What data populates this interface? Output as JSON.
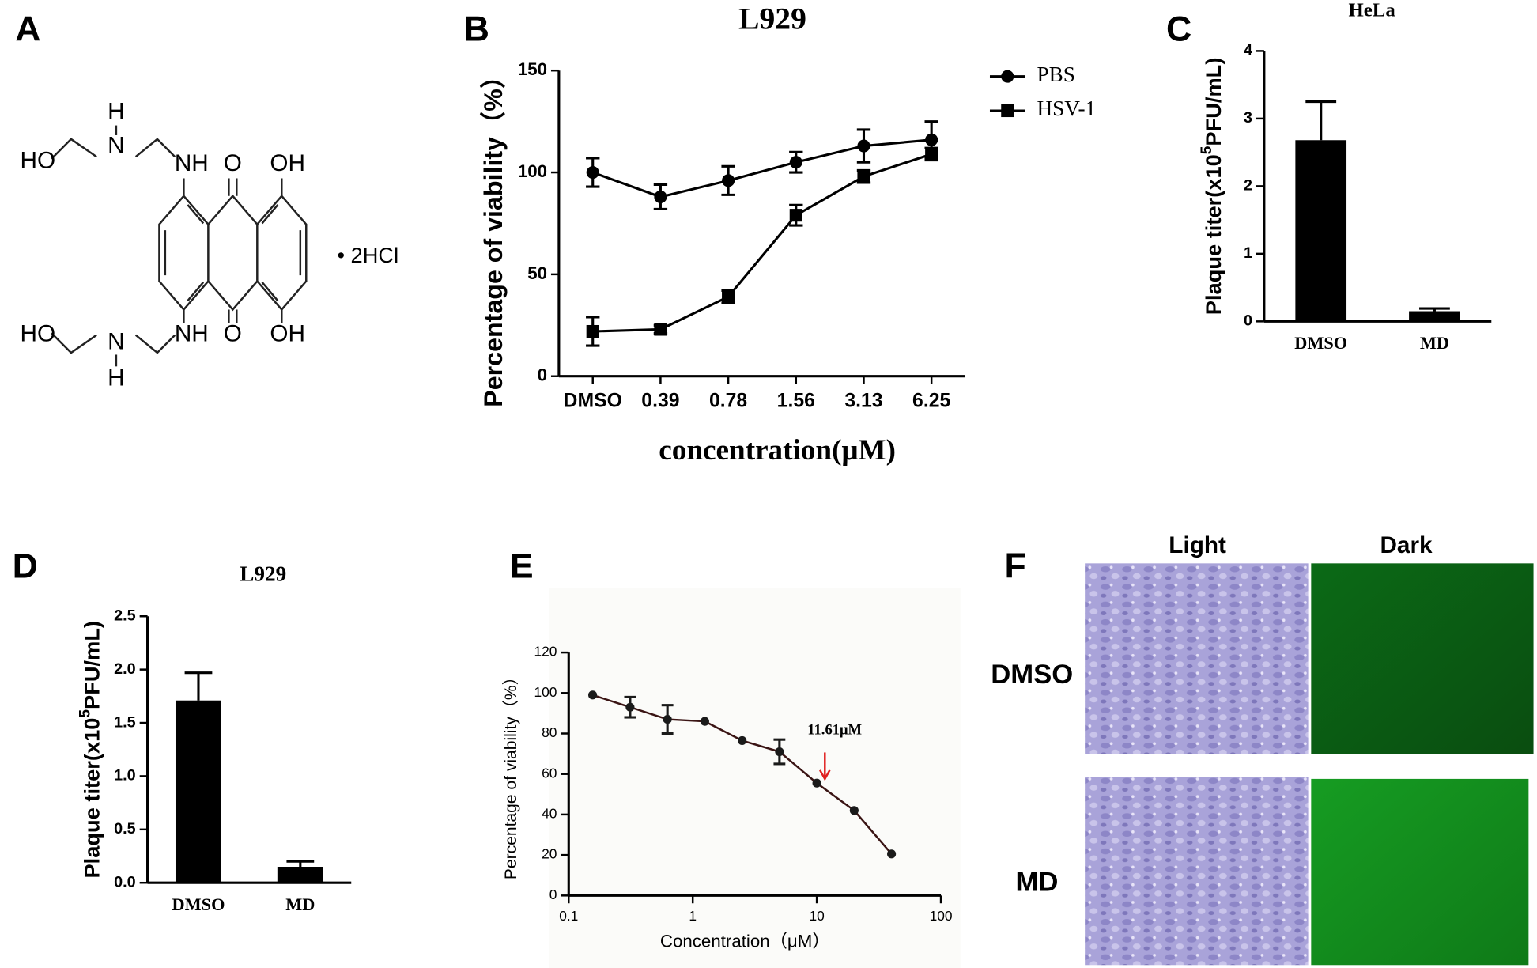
{
  "panel_labels": [
    "A",
    "B",
    "C",
    "D",
    "E",
    "F"
  ],
  "structure": {
    "labels": [
      "HO",
      "H",
      "N",
      "NH",
      "O",
      "OH",
      "HO",
      "N",
      "H",
      "NH",
      "O",
      "OH",
      "• 2HCl"
    ]
  },
  "chart_data": [
    {
      "type": "line",
      "title": "L929",
      "xlabel": "concentration(μM)",
      "ylabel": "Percentage of viability（%）",
      "categories": [
        "DMSO",
        "0.39",
        "0.78",
        "1.56",
        "3.13",
        "6.25"
      ],
      "series": [
        {
          "name": "PBS",
          "marker": "circle",
          "color": "#000000",
          "values": [
            100,
            88,
            96,
            105,
            113,
            116
          ],
          "errors": [
            7,
            6,
            7,
            5,
            8,
            9
          ]
        },
        {
          "name": "HSV-1",
          "marker": "square",
          "color": "#000000",
          "values": [
            22,
            23,
            39,
            79,
            98,
            109
          ],
          "errors": [
            7,
            2,
            3,
            5,
            3,
            3
          ]
        }
      ],
      "ylim": [
        0,
        150
      ],
      "yticks": [
        0,
        50,
        100,
        150
      ],
      "legend": "top-right"
    },
    {
      "type": "bar",
      "title": "HeLa",
      "ylabel_parts": [
        "Plaque titer(x10",
        "5",
        "PFU/mL)"
      ],
      "categories": [
        "DMSO",
        "MD"
      ],
      "values": [
        2.68,
        0.15
      ],
      "errors": [
        0.57,
        0.04
      ],
      "color": "#000000",
      "ylim": [
        0,
        4
      ],
      "yticks": [
        0,
        1,
        2,
        3,
        4
      ]
    },
    {
      "type": "bar",
      "title": "L929",
      "ylabel_parts": [
        "Plaque titer(x10",
        "5",
        "PFU/mL)"
      ],
      "categories": [
        "DMSO",
        "MD"
      ],
      "values": [
        1.71,
        0.15
      ],
      "errors": [
        0.26,
        0.05
      ],
      "color": "#000000",
      "ylim": [
        0,
        2.5
      ],
      "yticks": [
        {
          "value": 0,
          "label": "0.0"
        },
        0.5,
        {
          "value": 1,
          "label": "1.0"
        },
        1.5,
        {
          "value": 2,
          "label": "2.0"
        },
        2.5
      ]
    },
    {
      "type": "line",
      "xscale": "log",
      "xlabel": "Concentration（μM）",
      "ylabel": "Percentage of viability（%）",
      "x": [
        0.156,
        0.3125,
        0.625,
        1.25,
        2.5,
        5,
        10,
        20,
        40
      ],
      "values": [
        99,
        93,
        87,
        86,
        76.5,
        71,
        55.5,
        42,
        20.5
      ],
      "errors": [
        0,
        5,
        7,
        0,
        0,
        6,
        0,
        0,
        0
      ],
      "color": "#1a1a1a",
      "line_color": "#3a1414",
      "annotation": {
        "text": "11.61μM",
        "x": 11.61,
        "color": "#e02020"
      },
      "xlim": [
        0.1,
        100
      ],
      "xticks": [
        0.1,
        1,
        10,
        100
      ],
      "ylim": [
        0,
        120
      ],
      "yticks": [
        0,
        20,
        40,
        60,
        80,
        100,
        120
      ]
    }
  ],
  "images": {
    "columns": [
      "Light",
      "Dark"
    ],
    "rows": [
      "DMSO",
      "MD"
    ]
  }
}
